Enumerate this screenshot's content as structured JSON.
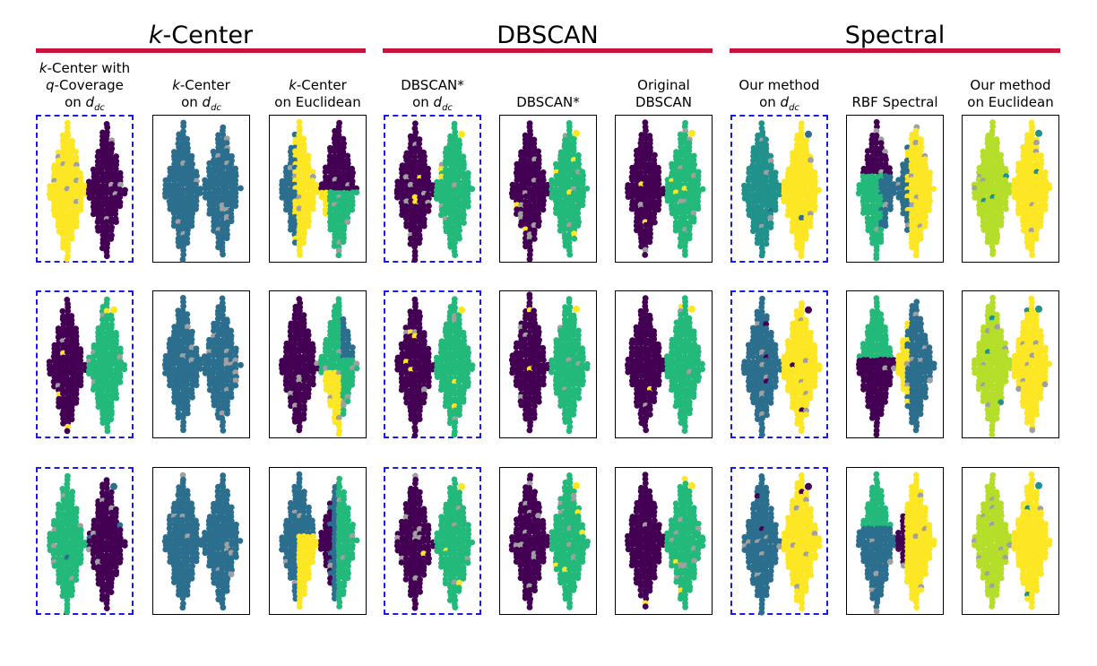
{
  "colors": {
    "cluster_bar": "#c8143c",
    "highlight_border": "#1a1ae6",
    "purple": "#440154",
    "blue": "#2c6e8e",
    "teal": "#21918c",
    "green": "#22b97a",
    "yellow": "#fde725",
    "lime": "#b5de2b",
    "noise": "#a0a0a0"
  },
  "groups": [
    {
      "id": "kcenter",
      "label_prefix": "k",
      "label": "-Center"
    },
    {
      "id": "dbscan",
      "label_prefix": "",
      "label": "DBSCAN"
    },
    {
      "id": "spectral",
      "label_prefix": "",
      "label": "Spectral"
    }
  ],
  "columns": [
    {
      "lines": [
        [
          "k",
          "-Center with"
        ],
        [
          "q",
          "-Coverage"
        ],
        [
          "on d",
          "dc"
        ]
      ]
    },
    {
      "lines": [
        [
          "k",
          "-Center"
        ],
        [
          "on d",
          "dc"
        ]
      ]
    },
    {
      "lines": [
        [
          "k",
          "-Center"
        ],
        [
          "",
          "on Euclidean"
        ]
      ]
    },
    {
      "lines": [
        [
          "",
          "DBSCAN*"
        ],
        [
          "on d",
          "dc"
        ]
      ]
    },
    {
      "lines": [
        [
          "",
          "DBSCAN*"
        ]
      ]
    },
    {
      "lines": [
        [
          "",
          "Original"
        ],
        [
          "",
          "DBSCAN"
        ]
      ]
    },
    {
      "lines": [
        [
          "",
          "Our method"
        ],
        [
          "on d",
          "dc"
        ]
      ]
    },
    {
      "lines": [
        [
          "",
          "RBF Spectral"
        ]
      ]
    },
    {
      "lines": [
        [
          "",
          "Our method"
        ],
        [
          "",
          "on Euclidean"
        ]
      ]
    }
  ],
  "chart_data": {
    "type": "scatter",
    "description_rows": 3,
    "description_cols": 9,
    "shape": "two adjacent diamonds",
    "highlighted_columns": [
      0,
      3,
      6
    ],
    "panels": [
      [
        {
          "left": "yellow",
          "right": "purple",
          "noise": true
        },
        {
          "left": "blue",
          "right": "blue"
        },
        {
          "split": "euclid",
          "a": "blue",
          "b": "yellow",
          "c": "purple",
          "d": "green"
        },
        {
          "left": "purple",
          "right": "green",
          "accent": "yellow"
        },
        {
          "left": "purple",
          "right": "green",
          "accent": "yellow"
        },
        {
          "left": "purple",
          "right": "green",
          "accent": "yellow"
        },
        {
          "left": "teal",
          "right": "yellow",
          "accent": "blue"
        },
        {
          "split": "rbf",
          "a": "purple",
          "b": "green",
          "c": "blue",
          "d": "yellow"
        },
        {
          "left": "lime",
          "right": "yellow",
          "accent": "teal"
        }
      ],
      [
        {
          "left": "purple",
          "right": "green",
          "accent": "yellow"
        },
        {
          "left": "blue",
          "right": "blue"
        },
        {
          "split": "euclid2",
          "a": "purple",
          "b": "green",
          "c": "blue",
          "d": "yellow"
        },
        {
          "left": "purple",
          "right": "green",
          "accent": "yellow"
        },
        {
          "left": "purple",
          "right": "green",
          "accent": "yellow"
        },
        {
          "left": "purple",
          "right": "green",
          "accent": "yellow"
        },
        {
          "left": "blue",
          "right": "yellow",
          "accent": "purple"
        },
        {
          "split": "rbf2",
          "a": "green",
          "b": "purple",
          "c": "yellow",
          "d": "blue"
        },
        {
          "left": "lime",
          "right": "yellow",
          "accent": "teal"
        }
      ],
      [
        {
          "left": "green",
          "right": "purple",
          "accent": "blue"
        },
        {
          "left": "blue",
          "right": "blue"
        },
        {
          "split": "euclid3",
          "a": "blue",
          "b": "yellow",
          "c": "purple",
          "d": "green"
        },
        {
          "left": "purple",
          "right": "green",
          "accent": "yellow"
        },
        {
          "left": "purple",
          "right": "green",
          "accent": "yellow"
        },
        {
          "left": "purple",
          "right": "green",
          "accent": "yellow"
        },
        {
          "left": "blue",
          "right": "yellow",
          "accent": "purple"
        },
        {
          "split": "rbf3",
          "a": "green",
          "b": "blue",
          "c": "purple",
          "d": "yellow"
        },
        {
          "left": "lime",
          "right": "yellow",
          "accent": "teal"
        }
      ]
    ]
  }
}
